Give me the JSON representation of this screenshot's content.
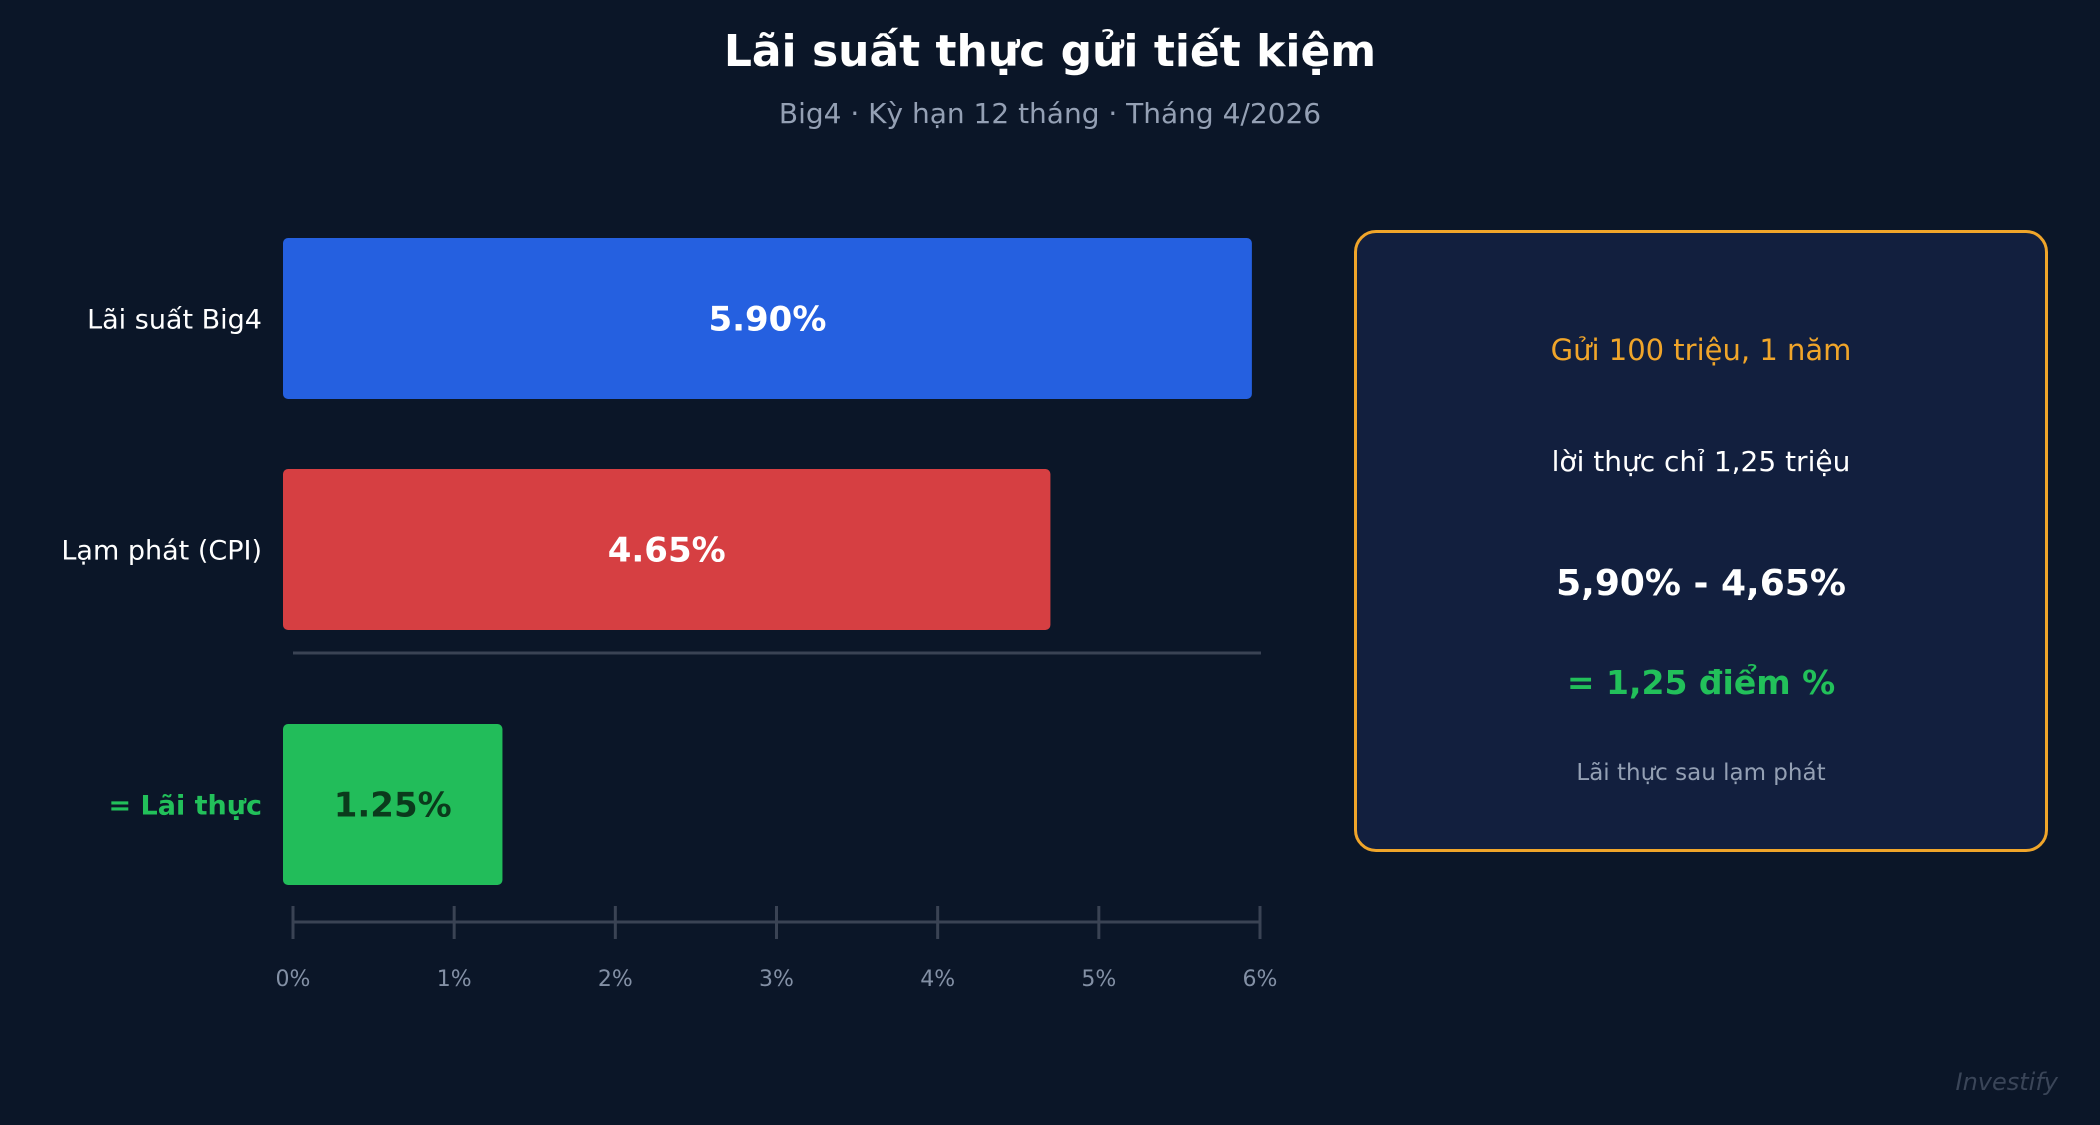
{
  "title": "Lãi suất thực gửi tiết kiệm",
  "subtitle": "Big4 · Kỳ hạn 12 tháng · Tháng 4/2026",
  "chart_data": {
    "type": "bar",
    "orientation": "horizontal",
    "categories": [
      "Lãi suất Big4",
      "Lạm phát (CPI)",
      "= Lãi thực"
    ],
    "values": [
      5.9,
      4.65,
      1.25
    ],
    "data_labels": [
      "5.90%",
      "4.65%",
      "1.25%"
    ],
    "colors": [
      "#2560e0",
      "#d63f42",
      "#22bd5a"
    ],
    "label_colors": [
      "#ffffff",
      "#ffffff",
      "#22c05a"
    ],
    "value_label_colors": [
      "#ffffff",
      "#ffffff",
      "#0b3a1c"
    ],
    "xlim": [
      0,
      6
    ],
    "xticks": [
      "0%",
      "1%",
      "2%",
      "3%",
      "4%",
      "5%",
      "6%"
    ],
    "grid": false
  },
  "card": {
    "line1": "Gửi 100 triệu, 1 năm",
    "line2": "lời thực chỉ 1,25 triệu",
    "line3": "5,90% - 4,65%",
    "line4": "= 1,25 điểm %",
    "line5": "Lãi thực sau lạm phát",
    "border_color": "#f0a52a"
  },
  "watermark": "Investify"
}
